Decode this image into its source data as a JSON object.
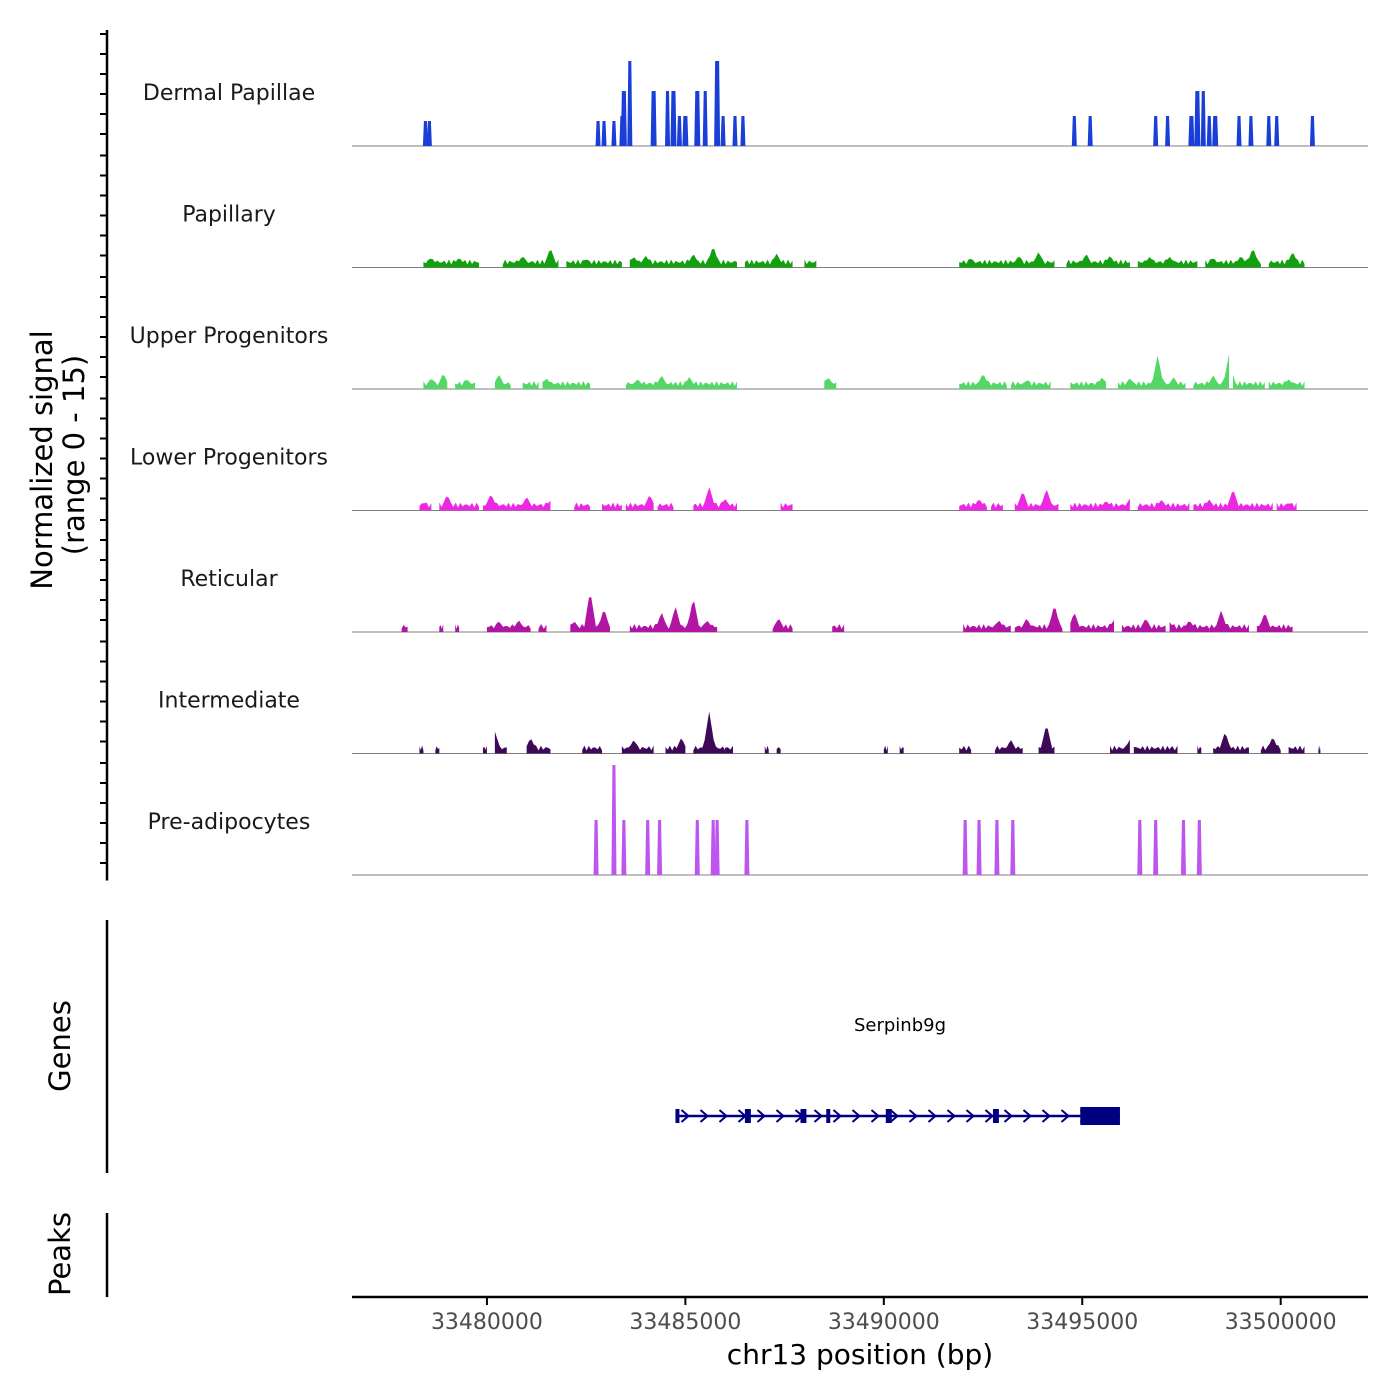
{
  "chart_data": {
    "type": "area",
    "title": "",
    "ylabel_line1": "Normalized signal",
    "ylabel_line2": "(range 0 - 15)",
    "xlabel": "chr13 position (bp)",
    "xlim": [
      33476600,
      33502200
    ],
    "ylim": [
      0,
      15
    ],
    "x_ticks": [
      33480000,
      33485000,
      33490000,
      33495000,
      33500000
    ],
    "x_tick_labels": [
      "33480000",
      "33485000",
      "33490000",
      "33495000",
      "33500000"
    ],
    "tracks": [
      {
        "name": "Dermal Papillae",
        "color": "#1a3fd6",
        "mode": "spike",
        "peaks": [
          [
            33478450,
            5,
            25
          ],
          [
            33478550,
            5,
            25
          ],
          [
            33482800,
            5,
            25
          ],
          [
            33482950,
            5,
            25
          ],
          [
            33483200,
            5,
            25
          ],
          [
            33483400,
            5,
            30
          ],
          [
            33483450,
            6,
            55
          ],
          [
            33483600,
            5,
            85
          ],
          [
            33484200,
            6,
            55
          ],
          [
            33484550,
            5,
            55
          ],
          [
            33484700,
            6,
            55
          ],
          [
            33484850,
            5,
            30
          ],
          [
            33485000,
            6,
            30
          ],
          [
            33485300,
            6,
            55
          ],
          [
            33485500,
            5,
            55
          ],
          [
            33485800,
            6,
            85
          ],
          [
            33485950,
            5,
            30
          ],
          [
            33486250,
            5,
            30
          ],
          [
            33486450,
            5,
            30
          ],
          [
            33494800,
            5,
            30
          ],
          [
            33495200,
            5,
            30
          ],
          [
            33496850,
            5,
            30
          ],
          [
            33497150,
            5,
            30
          ],
          [
            33497750,
            6,
            30
          ],
          [
            33497900,
            6,
            55
          ],
          [
            33498050,
            5,
            55
          ],
          [
            33498200,
            5,
            30
          ],
          [
            33498350,
            6,
            30
          ],
          [
            33498950,
            5,
            30
          ],
          [
            33499250,
            5,
            30
          ],
          [
            33499700,
            5,
            30
          ],
          [
            33499900,
            5,
            30
          ],
          [
            33500800,
            5,
            30
          ]
        ]
      },
      {
        "name": "Papillary",
        "color": "#12a00e",
        "mode": "area",
        "regions": [
          [
            33478400,
            33479800
          ],
          [
            33480400,
            33481800
          ],
          [
            33482000,
            33483400
          ],
          [
            33483600,
            33484700
          ],
          [
            33484700,
            33486300
          ],
          [
            33486500,
            33487700
          ],
          [
            33488000,
            33488300
          ],
          [
            33491900,
            33494300
          ],
          [
            33494600,
            33496200
          ],
          [
            33496400,
            33497900
          ],
          [
            33498100,
            33499500
          ],
          [
            33499700,
            33500600
          ]
        ],
        "bumps": [
          [
            33478600,
            8
          ],
          [
            33479300,
            8
          ],
          [
            33480900,
            10
          ],
          [
            33481600,
            18
          ],
          [
            33482500,
            7
          ],
          [
            33483700,
            9
          ],
          [
            33484000,
            10
          ],
          [
            33485200,
            12
          ],
          [
            33485700,
            20
          ],
          [
            33486400,
            9
          ],
          [
            33487300,
            12
          ],
          [
            33492200,
            7
          ],
          [
            33493400,
            10
          ],
          [
            33493900,
            14
          ],
          [
            33495100,
            12
          ],
          [
            33495700,
            10
          ],
          [
            33496700,
            9
          ],
          [
            33497200,
            9
          ],
          [
            33498300,
            8
          ],
          [
            33499000,
            10
          ],
          [
            33499300,
            18
          ],
          [
            33500300,
            14
          ]
        ]
      },
      {
        "name": "Upper Progenitors",
        "color": "#55d768",
        "mode": "area",
        "regions": [
          [
            33478400,
            33479000
          ],
          [
            33479200,
            33479700
          ],
          [
            33480200,
            33480600
          ],
          [
            33480900,
            33481300
          ],
          [
            33481400,
            33482600
          ],
          [
            33483500,
            33484700
          ],
          [
            33484700,
            33486300
          ],
          [
            33488500,
            33488800
          ],
          [
            33491900,
            33493100
          ],
          [
            33493200,
            33494200
          ],
          [
            33494700,
            33495600
          ],
          [
            33495900,
            33497600
          ],
          [
            33497800,
            33498700
          ],
          [
            33498800,
            33499600
          ],
          [
            33499700,
            33500600
          ]
        ],
        "bumps": [
          [
            33478600,
            9
          ],
          [
            33478900,
            14
          ],
          [
            33479500,
            8
          ],
          [
            33480300,
            13
          ],
          [
            33481500,
            9
          ],
          [
            33483800,
            8
          ],
          [
            33484400,
            12
          ],
          [
            33485100,
            10
          ],
          [
            33488600,
            10
          ],
          [
            33492500,
            14
          ],
          [
            33493600,
            7
          ],
          [
            33495500,
            10
          ],
          [
            33496200,
            9
          ],
          [
            33496900,
            32
          ],
          [
            33497300,
            10
          ],
          [
            33498300,
            12
          ],
          [
            33498700,
            33
          ],
          [
            33500200,
            8
          ]
        ]
      },
      {
        "name": "Lower Progenitors",
        "color": "#ec28e3",
        "mode": "area",
        "regions": [
          [
            33478300,
            33478600
          ],
          [
            33478800,
            33479800
          ],
          [
            33479900,
            33481600
          ],
          [
            33482200,
            33482600
          ],
          [
            33482900,
            33483400
          ],
          [
            33483500,
            33484200
          ],
          [
            33484300,
            33484700
          ],
          [
            33485200,
            33486300
          ],
          [
            33487400,
            33487700
          ],
          [
            33491900,
            33492600
          ],
          [
            33492700,
            33493000
          ],
          [
            33493300,
            33494400
          ],
          [
            33494700,
            33496200
          ],
          [
            33496400,
            33497700
          ],
          [
            33497800,
            33499800
          ],
          [
            33499900,
            33500400
          ]
        ],
        "bumps": [
          [
            33478400,
            6
          ],
          [
            33479000,
            14
          ],
          [
            33480100,
            15
          ],
          [
            33481000,
            12
          ],
          [
            33481600,
            8
          ],
          [
            33484100,
            14
          ],
          [
            33485600,
            22
          ],
          [
            33486000,
            10
          ],
          [
            33492400,
            10
          ],
          [
            33493500,
            18
          ],
          [
            33494100,
            20
          ],
          [
            33495600,
            8
          ],
          [
            33496200,
            10
          ],
          [
            33497000,
            9
          ],
          [
            33498200,
            9
          ],
          [
            33498800,
            20
          ],
          [
            33500200,
            6
          ]
        ]
      },
      {
        "name": "Reticular",
        "color": "#b214a4",
        "mode": "area",
        "regions": [
          [
            33477850,
            33478000
          ],
          [
            33478800,
            33478900
          ],
          [
            33479200,
            33479300
          ],
          [
            33480000,
            33481100
          ],
          [
            33481300,
            33481500
          ],
          [
            33482100,
            33483100
          ],
          [
            33483600,
            33485800
          ],
          [
            33487200,
            33487700
          ],
          [
            33488700,
            33489000
          ],
          [
            33492000,
            33493200
          ],
          [
            33493300,
            33494500
          ],
          [
            33494700,
            33495800
          ],
          [
            33496000,
            33497100
          ],
          [
            33497200,
            33498200
          ],
          [
            33498200,
            33499200
          ],
          [
            33499400,
            33500300
          ]
        ],
        "bumps": [
          [
            33480300,
            9
          ],
          [
            33480800,
            10
          ],
          [
            33482200,
            9
          ],
          [
            33482600,
            40
          ],
          [
            33482950,
            22
          ],
          [
            33484400,
            18
          ],
          [
            33484750,
            24
          ],
          [
            33485200,
            33
          ],
          [
            33485550,
            10
          ],
          [
            33487350,
            12
          ],
          [
            33492900,
            10
          ],
          [
            33493600,
            12
          ],
          [
            33494300,
            26
          ],
          [
            33494800,
            18
          ],
          [
            33495800,
            10
          ],
          [
            33496600,
            12
          ],
          [
            33497200,
            8
          ],
          [
            33497700,
            10
          ],
          [
            33498500,
            20
          ],
          [
            33499600,
            18
          ]
        ]
      },
      {
        "name": "Intermediate",
        "color": "#3e0a58",
        "mode": "area",
        "regions": [
          [
            33478300,
            33478400
          ],
          [
            33478700,
            33478800
          ],
          [
            33479900,
            33480000
          ],
          [
            33480200,
            33480500
          ],
          [
            33481000,
            33481600
          ],
          [
            33482400,
            33482900
          ],
          [
            33483400,
            33484200
          ],
          [
            33484500,
            33485000
          ],
          [
            33485200,
            33486000
          ],
          [
            33486000,
            33486200
          ],
          [
            33487000,
            33487100
          ],
          [
            33487300,
            33487400
          ],
          [
            33490000,
            33490100
          ],
          [
            33490400,
            33490500
          ],
          [
            33491900,
            33492200
          ],
          [
            33492800,
            33493500
          ],
          [
            33493900,
            33494300
          ],
          [
            33495700,
            33496200
          ],
          [
            33496300,
            33497200
          ],
          [
            33497200,
            33497400
          ],
          [
            33497900,
            33498000
          ],
          [
            33498300,
            33499200
          ],
          [
            33499500,
            33500000
          ],
          [
            33500200,
            33500600
          ],
          [
            33500950,
            33501000
          ]
        ],
        "bumps": [
          [
            33480200,
            20
          ],
          [
            33481100,
            14
          ],
          [
            33483700,
            12
          ],
          [
            33484900,
            14
          ],
          [
            33485600,
            40
          ],
          [
            33493200,
            12
          ],
          [
            33494100,
            28
          ],
          [
            33496200,
            12
          ],
          [
            33498600,
            20
          ],
          [
            33499800,
            15
          ]
        ]
      },
      {
        "name": "Pre-adipocytes",
        "color": "#be55f0",
        "mode": "spike",
        "peaks": [
          [
            33482750,
            5,
            55
          ],
          [
            33483200,
            5,
            110
          ],
          [
            33483450,
            5,
            55
          ],
          [
            33484050,
            5,
            55
          ],
          [
            33484350,
            5,
            55
          ],
          [
            33485300,
            5,
            55
          ],
          [
            33485700,
            5,
            55
          ],
          [
            33485800,
            5,
            55
          ],
          [
            33486550,
            5,
            55
          ],
          [
            33492050,
            5,
            55
          ],
          [
            33492400,
            5,
            55
          ],
          [
            33492850,
            5,
            55
          ],
          [
            33493250,
            5,
            55
          ],
          [
            33496450,
            5,
            55
          ],
          [
            33496850,
            5,
            55
          ],
          [
            33497550,
            5,
            55
          ],
          [
            33497950,
            5,
            55
          ]
        ]
      }
    ],
    "genes_label": "Genes",
    "peaks_label": "Peaks",
    "gene": {
      "name": "Serpinb9g",
      "start": 33484750,
      "end": 33495950,
      "strand": "+",
      "exons": [
        [
          33484750,
          33484850
        ],
        [
          33486500,
          33486650
        ],
        [
          33487900,
          33488050
        ],
        [
          33488550,
          33488650
        ],
        [
          33490050,
          33490200
        ],
        [
          33492750,
          33492900
        ],
        [
          33494950,
          33495950
        ]
      ]
    }
  }
}
